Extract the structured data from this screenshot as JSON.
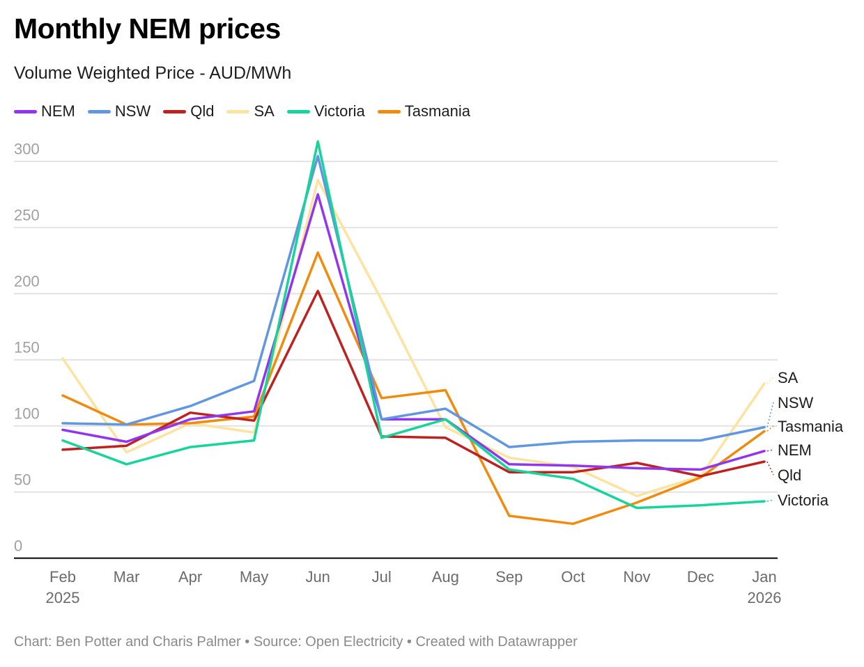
{
  "header": {
    "title": "Monthly NEM prices",
    "subtitle": "Volume Weighted Price - AUD/MWh"
  },
  "footer": {
    "credit": "Chart: Ben Potter and Charis Palmer • Source: Open Electricity • Created with Datawrapper"
  },
  "chart_data": {
    "type": "line",
    "title": "Monthly NEM prices",
    "subtitle": "Volume Weighted Price - AUD/MWh",
    "xlabel": "",
    "ylabel": "AUD/MWh",
    "ylim": [
      0,
      315
    ],
    "yticks": [
      0,
      50,
      100,
      150,
      200,
      250,
      300
    ],
    "grid": true,
    "legend_position": "top-left",
    "categories": [
      "Feb",
      "Mar",
      "Apr",
      "May",
      "Jun",
      "Jul",
      "Aug",
      "Sep",
      "Oct",
      "Nov",
      "Dec",
      "Jan"
    ],
    "category_sublabels": [
      "2025",
      "",
      "",
      "",
      "",
      "",
      "",
      "",
      "",
      "",
      "",
      "2026"
    ],
    "series": [
      {
        "name": "NEM",
        "color": "#9035f0",
        "values": [
          97,
          88,
          105,
          111,
          275,
          105,
          105,
          71,
          70,
          68,
          67,
          81
        ]
      },
      {
        "name": "NSW",
        "color": "#6197e0",
        "values": [
          102,
          101,
          115,
          134,
          304,
          105,
          113,
          84,
          88,
          89,
          89,
          99
        ]
      },
      {
        "name": "Qld",
        "color": "#be2220",
        "values": [
          82,
          85,
          110,
          104,
          202,
          92,
          91,
          65,
          65,
          72,
          62,
          73
        ]
      },
      {
        "name": "SA",
        "color": "#fde3a0",
        "values": [
          151,
          80,
          102,
          95,
          286,
          195,
          99,
          76,
          69,
          47,
          62,
          132
        ]
      },
      {
        "name": "Victoria",
        "color": "#16d49a",
        "values": [
          89,
          71,
          84,
          89,
          315,
          91,
          105,
          67,
          60,
          38,
          40,
          43
        ]
      },
      {
        "name": "Tasmania",
        "color": "#f18b0e",
        "values": [
          123,
          101,
          102,
          107,
          231,
          121,
          127,
          32,
          26,
          42,
          61,
          96
        ]
      }
    ],
    "end_labels": [
      {
        "series": "SA",
        "text": "SA"
      },
      {
        "series": "NSW",
        "text": "NSW"
      },
      {
        "series": "Tasmania",
        "text": "Tasmania"
      },
      {
        "series": "NEM",
        "text": "NEM"
      },
      {
        "series": "Qld",
        "text": "Qld"
      },
      {
        "series": "Victoria",
        "text": "Victoria"
      }
    ]
  }
}
